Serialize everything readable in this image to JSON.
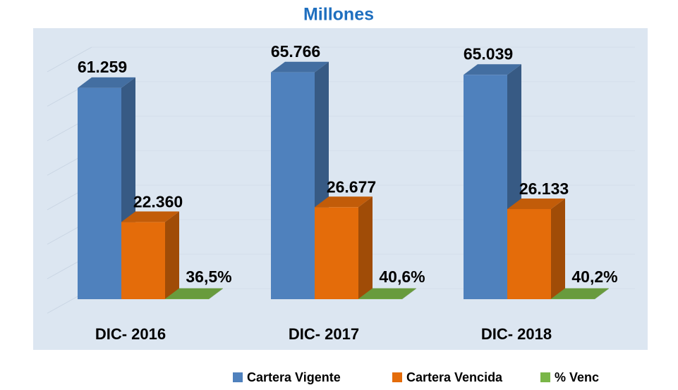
{
  "chart_data": {
    "type": "bar",
    "title": "Millones",
    "categories": [
      "DIC- 2016",
      "DIC- 2017",
      "DIC- 2018"
    ],
    "series": [
      {
        "name": "Cartera Vigente",
        "color": "#4f81bd",
        "values": [
          61259,
          65766,
          65039
        ],
        "value_labels": [
          "61.259",
          "65.766",
          "65.039"
        ]
      },
      {
        "name": "Cartera Vencida",
        "color": "#e46c0a",
        "values": [
          22360,
          26677,
          26133
        ],
        "value_labels": [
          "22.360",
          "26.677",
          "26.133"
        ]
      },
      {
        "name": "% Venc",
        "color": "#7ab648",
        "values": [
          36.5,
          40.6,
          40.2
        ],
        "value_labels": [
          "36,5%",
          "40,6%",
          "40,2%"
        ]
      }
    ],
    "ylim": [
      0,
      70000
    ],
    "yticks": [
      0,
      10000,
      20000,
      30000,
      40000,
      50000,
      60000,
      70000
    ],
    "grid": true
  }
}
